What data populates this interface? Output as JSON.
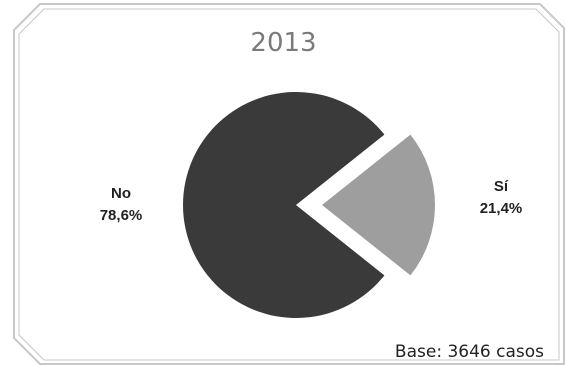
{
  "chart_data": {
    "type": "pie",
    "title": "2013",
    "slices": [
      {
        "label": "No",
        "value": 78.6,
        "value_label": "78,6%",
        "color": "#3a3a3a",
        "exploded": false
      },
      {
        "label": "Sí",
        "value": 21.4,
        "value_label": "21,4%",
        "color": "#9e9e9e",
        "exploded": true
      }
    ],
    "legend": "none",
    "note": "Base: 3646 casos"
  },
  "colors": {
    "frame_border": "#c8c8c8",
    "title": "#7a7a7a",
    "background": "#ffffff"
  }
}
